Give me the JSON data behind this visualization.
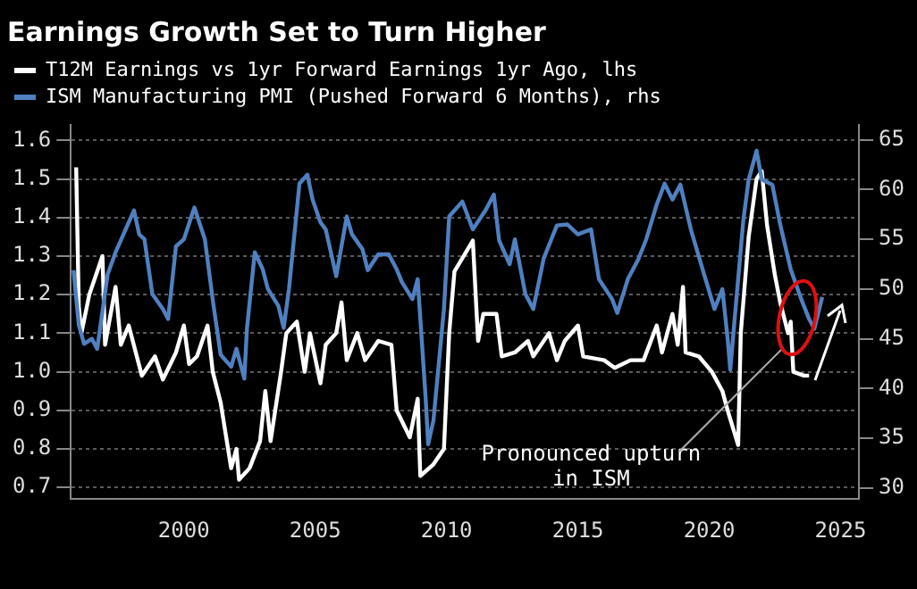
{
  "chart_data": {
    "type": "line",
    "title": "Earnings Growth Set to Turn Higher",
    "series": [
      {
        "name": "T12M Earnings vs 1yr Forward Earnings 1yr Ago, lhs",
        "color": "#ffffff",
        "x": [
          1995.9,
          1996.0,
          1996.1,
          1996.4,
          1996.9,
          1997.0,
          1997.4,
          1997.6,
          1997.9,
          1998.4,
          1998.9,
          1999.2,
          1999.7,
          2000.0,
          2000.2,
          2000.5,
          2000.9,
          2001.1,
          2001.4,
          2001.8,
          2002.0,
          2002.1,
          2002.5,
          2002.9,
          2003.1,
          2003.3,
          2003.7,
          2003.9,
          2004.3,
          2004.6,
          2004.8,
          2005.2,
          2005.4,
          2005.8,
          2006.0,
          2006.2,
          2006.6,
          2006.9,
          2007.4,
          2007.9,
          2008.1,
          2008.6,
          2008.9,
          2009.0,
          2009.5,
          2009.9,
          2010.1,
          2010.3,
          2011.0,
          2011.2,
          2011.4,
          2011.9,
          2012.1,
          2012.6,
          2013.1,
          2013.3,
          2013.9,
          2014.2,
          2014.5,
          2015.0,
          2015.2,
          2016.0,
          2016.4,
          2017.0,
          2017.5,
          2018.0,
          2018.2,
          2018.6,
          2018.8,
          2019.0,
          2019.1,
          2019.6,
          2020.1,
          2020.5,
          2020.7,
          2021.1,
          2021.2,
          2021.5,
          2021.8,
          2022.0,
          2022.2,
          2022.5,
          2022.7,
          2023.0,
          2023.1,
          2023.2,
          2023.6,
          2023.8
        ],
        "values": [
          1.53,
          1.17,
          1.1,
          1.2,
          1.3,
          1.07,
          1.22,
          1.07,
          1.12,
          0.99,
          1.04,
          0.98,
          1.05,
          1.12,
          1.02,
          1.04,
          1.12,
          1.0,
          0.92,
          0.75,
          0.8,
          0.72,
          0.75,
          0.82,
          0.95,
          0.82,
          1.0,
          1.1,
          1.13,
          1.0,
          1.1,
          0.97,
          1.07,
          1.1,
          1.18,
          1.03,
          1.1,
          1.03,
          1.08,
          1.07,
          0.9,
          0.83,
          0.93,
          0.73,
          0.76,
          0.8,
          1.1,
          1.26,
          1.34,
          1.08,
          1.15,
          1.15,
          1.04,
          1.05,
          1.08,
          1.04,
          1.1,
          1.03,
          1.08,
          1.12,
          1.04,
          1.03,
          1.01,
          1.03,
          1.03,
          1.12,
          1.05,
          1.15,
          1.07,
          1.22,
          1.05,
          1.04,
          1.0,
          0.95,
          0.9,
          0.81,
          1.1,
          1.35,
          1.5,
          1.52,
          1.38,
          1.25,
          1.18,
          1.1,
          1.13,
          1.0,
          0.99,
          0.99
        ]
      },
      {
        "name": "ISM Manufacturing PMI (Pushed Forward 6 Months), rhs",
        "color": "#4f80c0",
        "axis": "y2",
        "x": [
          1995.8,
          1996.0,
          1996.2,
          1996.5,
          1996.7,
          1997.1,
          1997.4,
          1998.1,
          1998.3,
          1998.5,
          1998.8,
          1999.2,
          1999.4,
          1999.7,
          2000.0,
          2000.4,
          2000.8,
          2001.1,
          2001.4,
          2001.8,
          2002.0,
          2002.3,
          2002.4,
          2002.7,
          2003.0,
          2003.2,
          2003.6,
          2003.8,
          2004.0,
          2004.4,
          2004.7,
          2004.9,
          2005.2,
          2005.4,
          2005.8,
          2006.2,
          2006.4,
          2006.8,
          2007.0,
          2007.4,
          2007.8,
          2008.1,
          2008.3,
          2008.7,
          2008.9,
          2009.2,
          2009.3,
          2009.5,
          2009.9,
          2010.1,
          2010.6,
          2011.0,
          2011.5,
          2011.8,
          2012.0,
          2012.4,
          2012.6,
          2013.0,
          2013.3,
          2013.7,
          2014.2,
          2014.6,
          2015.0,
          2015.5,
          2015.8,
          2016.3,
          2016.5,
          2016.9,
          2017.3,
          2017.6,
          2018.0,
          2018.3,
          2018.6,
          2018.9,
          2019.3,
          2019.8,
          2020.2,
          2020.5,
          2020.7,
          2020.8,
          2021.0,
          2021.3,
          2021.5,
          2021.8,
          2022.0,
          2022.4,
          2022.7,
          2023.1,
          2023.5,
          2023.8,
          2024.0,
          2024.3
        ],
        "values": [
          51.9,
          46.4,
          44.5,
          45,
          44,
          51.5,
          53.7,
          57.9,
          55.5,
          55,
          49.5,
          48,
          47,
          54.3,
          55,
          58.2,
          55,
          48.9,
          43.4,
          42.2,
          44,
          41,
          46,
          53.7,
          52,
          50,
          48.3,
          46.1,
          50,
          60.6,
          61.5,
          59,
          56.7,
          56,
          51.3,
          57.3,
          55.5,
          54,
          51.9,
          53.5,
          53.5,
          52,
          50.7,
          49,
          51,
          39.2,
          34.4,
          36.8,
          48,
          57.3,
          58.8,
          56,
          58,
          59.5,
          54.9,
          52.5,
          55,
          49.5,
          48,
          53.1,
          56.4,
          56.5,
          55.5,
          56,
          51,
          49,
          47.6,
          51,
          53,
          55,
          58.5,
          60.6,
          59,
          60.5,
          56,
          51.5,
          48,
          50,
          45,
          41.9,
          48,
          57,
          61,
          63.9,
          61,
          60.5,
          56.5,
          52,
          49,
          47,
          46,
          49.2
        ]
      }
    ],
    "xlim": [
      1995.7,
      2025.7
    ],
    "xticks": [
      2000,
      2005,
      2010,
      2015,
      2020,
      2025
    ],
    "ylim": [
      0.67,
      1.64
    ],
    "yticks": [
      0.7,
      0.8,
      0.9,
      {
        "value": 1,
        "label": "1.0"
      },
      1.1,
      1.2,
      1.3,
      1.4,
      1.5,
      1.6
    ],
    "y2lim": [
      28.9,
      66.5
    ],
    "y2ticks": [
      30,
      35,
      40,
      45,
      50,
      55,
      60,
      65
    ],
    "grid": "y",
    "legend": "top left",
    "annotations": [
      "Pronounced upturn\nin ISM"
    ]
  }
}
